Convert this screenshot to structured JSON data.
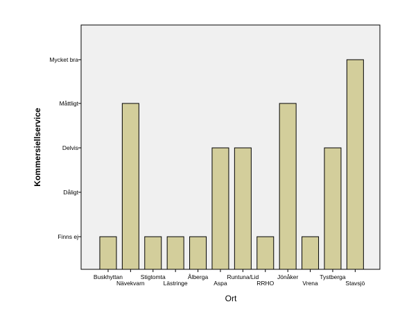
{
  "chart_data": {
    "type": "bar",
    "title": "",
    "xlabel": "Ort",
    "ylabel": "Kommersiellservice",
    "y_levels": [
      "Finns ej",
      "Dåligt",
      "Delvis",
      "Måttligt",
      "Mycket bra"
    ],
    "categories": [
      "Buskhyttan",
      "Nävekvarn",
      "Stigtomta",
      "Lästringe",
      "Ålberga",
      "Aspa",
      "Runtuna/Lid",
      "RRHO",
      "Jönåker",
      "Vrena",
      "Tystberga",
      "Stavsjö"
    ],
    "values": [
      "Finns ej",
      "Måttligt",
      "Finns ej",
      "Finns ej",
      "Finns ej",
      "Delvis",
      "Delvis",
      "Finns ej",
      "Måttligt",
      "Finns ej",
      "Delvis",
      "Mycket bra"
    ],
    "grid": false,
    "legend": "none",
    "colors": {
      "bar_fill": "#d3ce9b",
      "bar_stroke": "#000000",
      "plot_background": "#f0f0f0"
    }
  }
}
